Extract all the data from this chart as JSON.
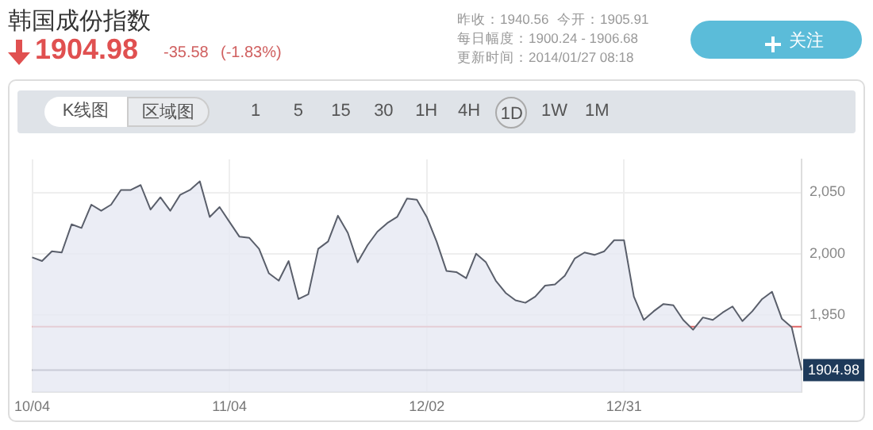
{
  "chart_data": {
    "type": "area",
    "title": "韩国成份指数",
    "categories": [
      "10/04",
      null,
      null,
      null,
      null,
      null,
      null,
      null,
      null,
      null,
      null,
      null,
      null,
      null,
      null,
      null,
      null,
      null,
      null,
      null,
      "11/04",
      null,
      null,
      null,
      null,
      null,
      null,
      null,
      null,
      null,
      null,
      null,
      null,
      null,
      null,
      null,
      null,
      null,
      null,
      null,
      "12/02",
      null,
      null,
      null,
      null,
      null,
      null,
      null,
      null,
      null,
      null,
      null,
      null,
      null,
      null,
      null,
      null,
      null,
      null,
      null,
      "12/31",
      null,
      null,
      null,
      null,
      null,
      null,
      null,
      null,
      null,
      null,
      null,
      null,
      null,
      null,
      null,
      null,
      null,
      null
    ],
    "series": [
      {
        "color": "#5a5f6b",
        "values": [
          1997,
          1994,
          2002,
          2001,
          2024,
          2021,
          2040,
          2035,
          2040,
          2052,
          2052,
          2056,
          2036,
          2046,
          2035,
          2048,
          2052,
          2059,
          2030,
          2038,
          2026,
          2014,
          2013,
          2004,
          1984,
          1978,
          1994,
          1963,
          1967,
          2004,
          2010,
          2031,
          2017,
          1993,
          2007,
          2018,
          2025,
          2030,
          2045,
          2044,
          2030,
          2010,
          1986,
          1985,
          1980,
          2000,
          1993,
          1978,
          1968,
          1962,
          1960,
          1965,
          1974,
          1975,
          1982,
          1996,
          2001,
          1999,
          2002,
          2011,
          2011,
          1965,
          1946,
          1953,
          1959,
          1958,
          1946,
          1938,
          1948,
          1946,
          1952,
          1957,
          1945,
          1953,
          1963,
          1969,
          1947,
          1940,
          1904.98
        ]
      }
    ],
    "ylim": [
      1887,
      2077
    ],
    "yticks": [
      {
        "value": 1950,
        "label": "1,950"
      },
      {
        "value": 2000,
        "label": "2,000"
      },
      {
        "value": 2050,
        "label": "2,050"
      }
    ],
    "grid": true,
    "legend": false,
    "marker": "none",
    "ref_lines": [
      {
        "axis": "y",
        "value": 1940.56,
        "color": "#e06666"
      },
      {
        "axis": "y",
        "value": 1904.98,
        "label": "1904.98",
        "color": "#555a66"
      }
    ],
    "annotations": [
      "1904.98",
      "-35.58",
      "(-1.83%)",
      "昨收：1940.56",
      "今开：1905.91",
      "每日幅度：1900.24 - 1906.68",
      "更新时间：2014/01/27 08:18",
      "关注",
      "K线图",
      "区域图",
      "15",
      "30",
      "1H",
      "4H",
      "1D",
      "1W",
      "1M",
      "1",
      "5"
    ]
  }
}
